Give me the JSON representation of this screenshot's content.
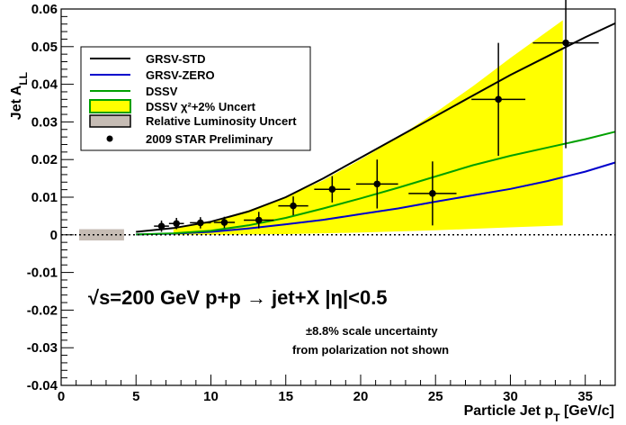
{
  "chart_data": {
    "type": "line",
    "xlabel": "Particle Jet p",
    "xlabel_sub": "T",
    "xlabel_units": " [GeV/c]",
    "ylabel": "Jet A",
    "ylabel_sub": "LL",
    "xlim": [
      0,
      37
    ],
    "ylim": [
      -0.04,
      0.06
    ],
    "x_ticks": [
      0,
      5,
      10,
      15,
      20,
      25,
      30,
      35
    ],
    "x_tick_labels": [
      "0",
      "5",
      "10",
      "15",
      "20",
      "25",
      "30",
      "35"
    ],
    "y_ticks": [
      -0.04,
      -0.03,
      -0.02,
      -0.01,
      0,
      0.01,
      0.02,
      0.03,
      0.04,
      0.05,
      0.06
    ],
    "y_tick_labels": [
      "-0.04",
      "-0.03",
      "-0.02",
      "-0.01",
      "0",
      "0.01",
      "0.02",
      "0.03",
      "0.04",
      "0.05",
      "0.06"
    ],
    "series": [
      {
        "name": "GRSV-STD",
        "color": "#000000",
        "x": [
          5,
          7.5,
          10,
          12.5,
          15,
          17.5,
          20,
          22.5,
          25,
          27.5,
          30,
          32.5,
          35,
          37
        ],
        "y": [
          0.0008,
          0.0018,
          0.0035,
          0.0062,
          0.01,
          0.015,
          0.0205,
          0.026,
          0.0315,
          0.037,
          0.0425,
          0.0475,
          0.0525,
          0.0562
        ]
      },
      {
        "name": "GRSV-ZERO",
        "color": "#0000cc",
        "x": [
          5,
          7.5,
          10,
          12.5,
          15,
          17.5,
          20,
          22.5,
          25,
          27.5,
          30,
          32.5,
          35,
          37
        ],
        "y": [
          0.0001,
          0.0003,
          0.0008,
          0.0017,
          0.0028,
          0.004,
          0.0055,
          0.007,
          0.0088,
          0.0105,
          0.0122,
          0.0143,
          0.0168,
          0.0192
        ]
      },
      {
        "name": "DSSV",
        "color": "#00a000",
        "x": [
          5,
          7.5,
          10,
          12.5,
          15,
          17.5,
          20,
          22.5,
          25,
          27.5,
          30,
          32.5,
          35,
          37
        ],
        "y": [
          0.0001,
          0.0004,
          0.0011,
          0.0025,
          0.0045,
          0.007,
          0.0097,
          0.0125,
          0.0155,
          0.0185,
          0.021,
          0.0232,
          0.0254,
          0.0274
        ]
      }
    ],
    "band": {
      "name": "DSSV χ²+2% Uncert",
      "color": "#ffff00",
      "edge_color": "#00a000",
      "x": [
        7.5,
        10,
        12.5,
        15,
        17.5,
        20,
        22.5,
        25,
        27.5,
        30,
        33.5
      ],
      "upper": [
        0.0015,
        0.0035,
        0.0065,
        0.01,
        0.0145,
        0.02,
        0.026,
        0.0325,
        0.0395,
        0.047,
        0.057
      ],
      "lower": [
        0.0,
        0.0,
        0.0001,
        0.0002,
        0.0004,
        0.0006,
        0.0009,
        0.0012,
        0.0016,
        0.002,
        0.0025
      ]
    },
    "lumi_box": {
      "name": "Relative Luminosity Uncert",
      "color": "#c6bcb4",
      "x": [
        1.2,
        4.2
      ],
      "y": [
        -0.0015,
        0.0015
      ]
    },
    "points": {
      "name": "2009 STAR Preliminary",
      "x": [
        6.7,
        7.7,
        9.3,
        10.9,
        13.2,
        15.5,
        18.1,
        21.1,
        24.8,
        29.2,
        33.7
      ],
      "y": [
        0.0023,
        0.003,
        0.0032,
        0.0033,
        0.0039,
        0.0077,
        0.0121,
        0.0135,
        0.011,
        0.036,
        0.051
      ],
      "xerr": [
        0.5,
        0.5,
        0.7,
        0.7,
        1.0,
        1.0,
        1.2,
        1.4,
        1.6,
        1.8,
        2.2
      ],
      "yerr": [
        0.0015,
        0.0015,
        0.0015,
        0.0015,
        0.0022,
        0.0025,
        0.0035,
        0.0065,
        0.0085,
        0.015,
        0.028
      ]
    },
    "zero_line": {
      "y": 0,
      "style": "dotted"
    },
    "legend": {
      "placement": "top-left",
      "entries": [
        "GRSV-STD",
        "GRSV-ZERO",
        "DSSV",
        "DSSV χ²+2% Uncert",
        "Relative Luminosity Uncert",
        "2009 STAR Preliminary"
      ]
    },
    "annotations": {
      "main": "√s=200 GeV   p+p → jet+X   |η|<0.5",
      "scale_line1": "±8.8% scale uncertainty",
      "scale_line2": "from polarization not shown"
    }
  }
}
